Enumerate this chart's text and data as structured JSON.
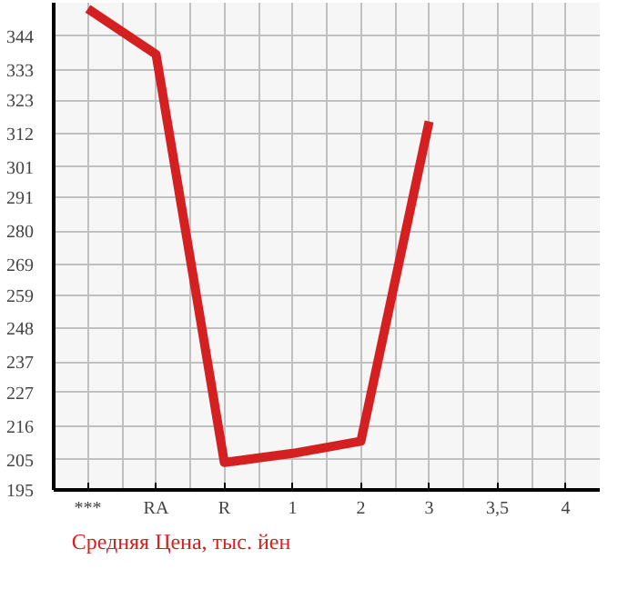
{
  "chart_data": {
    "type": "line",
    "categories": [
      "***",
      "RA",
      "R",
      "1",
      "2",
      "3",
      "3,5",
      "4"
    ],
    "series": [
      {
        "name": "Средняя Цена, тыс. йен",
        "color": "#d42020",
        "values": [
          353,
          338,
          204,
          207,
          211,
          316,
          null,
          null
        ]
      }
    ],
    "ylim": [
      195,
      355
    ],
    "yticks": [
      195,
      205,
      216,
      227,
      237,
      248,
      259,
      269,
      280,
      291,
      301,
      312,
      323,
      333,
      344
    ],
    "grid": true,
    "legend": "bottom",
    "marker": "none",
    "line_style": "solid"
  }
}
